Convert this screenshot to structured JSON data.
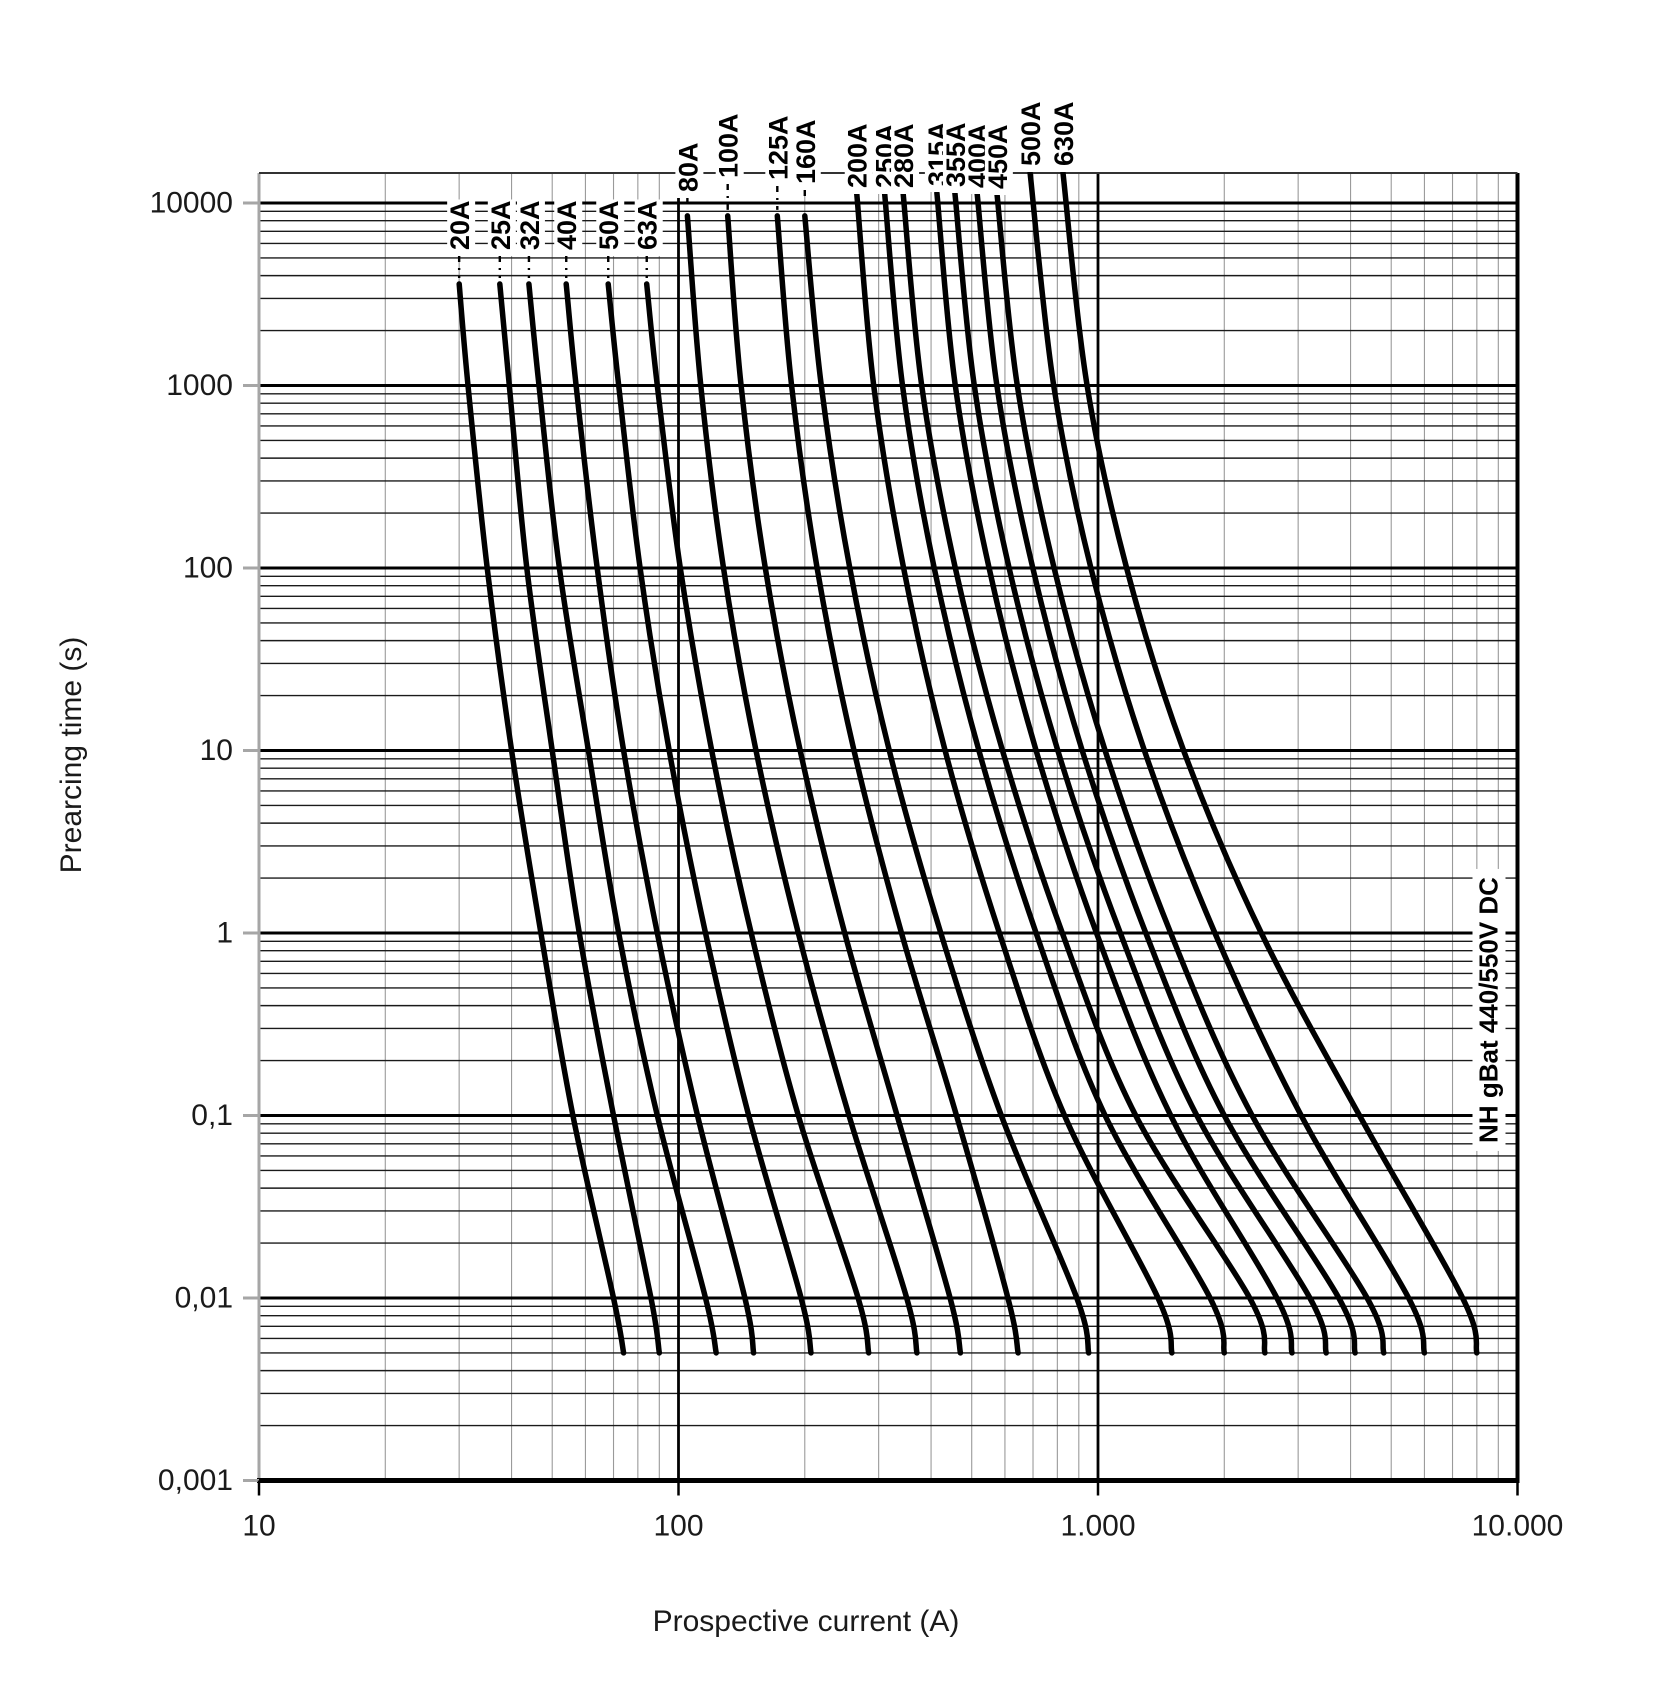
{
  "figure": {
    "x_axis_title": "Prospective current (A)",
    "y_axis_title": "Prearcing time (s)",
    "annotation": "NH gBat 440/550V DC"
  },
  "colors": {
    "curve": "#000000",
    "grid_minor_horizontal": "#1a1a1a",
    "grid_minor_vertical": "#9a9a9a",
    "grid_major": "#000000",
    "spine_left": "#a6a6a6",
    "spine_right": "#000000",
    "spine_top": "#333333",
    "spine_bottom": "#000000",
    "y_tick": "#a6a6a6",
    "x_tick": "#000000",
    "label_text": "#000000",
    "label_background": "#ffffff"
  },
  "chart_data": {
    "type": "line",
    "scale": "log-log",
    "title": "",
    "annotation": "NH gBat 440/550V DC",
    "xlabel": "Prospective current (A)",
    "ylabel": "Prearcing time (s)",
    "x_axis": {
      "min": 10,
      "max": 10000,
      "tick_values": [
        10,
        100,
        1000,
        10000
      ],
      "tick_labels": [
        "10",
        "100",
        "1.000",
        "10.000"
      ]
    },
    "y_axis": {
      "min": 0.001,
      "max": 14600,
      "tick_values": [
        0.001,
        0.01,
        0.1,
        1,
        10,
        100,
        1000,
        10000
      ],
      "tick_labels": [
        "0,001",
        "0,01",
        "0,1",
        "1",
        "10",
        "100",
        "1000",
        "10000"
      ]
    },
    "grid": {
      "major": true,
      "minor": true
    },
    "curve_end_time_s": 0.005,
    "series": [
      {
        "label": "20A",
        "rating_A": 20,
        "points_t_I": [
          [
            3600,
            30
          ],
          [
            1000,
            31.5
          ],
          [
            100,
            35
          ],
          [
            10,
            40
          ],
          [
            1,
            47
          ],
          [
            0.1,
            56
          ],
          [
            0.01,
            70
          ],
          [
            0.005,
            74
          ]
        ]
      },
      {
        "label": "25A",
        "rating_A": 25,
        "points_t_I": [
          [
            3600,
            37.5
          ],
          [
            1000,
            39.5
          ],
          [
            100,
            43.5
          ],
          [
            10,
            50
          ],
          [
            1,
            58
          ],
          [
            0.1,
            70
          ],
          [
            0.01,
            86
          ],
          [
            0.005,
            90
          ]
        ]
      },
      {
        "label": "32A",
        "rating_A": 32,
        "points_t_I": [
          [
            3600,
            44
          ],
          [
            1000,
            46.5
          ],
          [
            100,
            52
          ],
          [
            10,
            61
          ],
          [
            1,
            72
          ],
          [
            0.1,
            89
          ],
          [
            0.01,
            116
          ],
          [
            0.005,
            123
          ]
        ]
      },
      {
        "label": "40A",
        "rating_A": 40,
        "points_t_I": [
          [
            3600,
            54
          ],
          [
            1000,
            57
          ],
          [
            100,
            64
          ],
          [
            10,
            74
          ],
          [
            1,
            89
          ],
          [
            0.1,
            111
          ],
          [
            0.01,
            144
          ],
          [
            0.005,
            151
          ]
        ]
      },
      {
        "label": "50A",
        "rating_A": 50,
        "points_t_I": [
          [
            3600,
            68
          ],
          [
            1000,
            72
          ],
          [
            100,
            81
          ],
          [
            10,
            95
          ],
          [
            1,
            116
          ],
          [
            0.1,
            147
          ],
          [
            0.01,
            196
          ],
          [
            0.005,
            207
          ]
        ]
      },
      {
        "label": "63A",
        "rating_A": 63,
        "points_t_I": [
          [
            3600,
            84
          ],
          [
            1000,
            89
          ],
          [
            100,
            101
          ],
          [
            10,
            120
          ],
          [
            1,
            149
          ],
          [
            0.1,
            193
          ],
          [
            0.01,
            268
          ],
          [
            0.005,
            284
          ]
        ]
      },
      {
        "label": "80A",
        "rating_A": 80,
        "points_t_I": [
          [
            8500,
            105
          ],
          [
            1000,
            113
          ],
          [
            100,
            128
          ],
          [
            10,
            153
          ],
          [
            1,
            193
          ],
          [
            0.1,
            255
          ],
          [
            0.01,
            350
          ],
          [
            0.005,
            370
          ]
        ]
      },
      {
        "label": "100A",
        "rating_A": 100,
        "points_t_I": [
          [
            8500,
            131
          ],
          [
            1000,
            141
          ],
          [
            100,
            161
          ],
          [
            10,
            195
          ],
          [
            1,
            249
          ],
          [
            0.1,
            332
          ],
          [
            0.01,
            444
          ],
          [
            0.005,
            470
          ]
        ]
      },
      {
        "label": "125A",
        "rating_A": 125,
        "points_t_I": [
          [
            8500,
            172
          ],
          [
            1000,
            186
          ],
          [
            100,
            214
          ],
          [
            10,
            262
          ],
          [
            1,
            340
          ],
          [
            0.1,
            460
          ],
          [
            0.01,
            610
          ],
          [
            0.005,
            645
          ]
        ]
      },
      {
        "label": "160A",
        "rating_A": 160,
        "points_t_I": [
          [
            8500,
            200
          ],
          [
            1000,
            219
          ],
          [
            100,
            256
          ],
          [
            10,
            318
          ],
          [
            1,
            422
          ],
          [
            0.1,
            588
          ],
          [
            0.01,
            890
          ],
          [
            0.005,
            950
          ]
        ]
      },
      {
        "label": "200A",
        "rating_A": 200,
        "points_t_I": [
          [
            11350,
            266
          ],
          [
            1000,
            292
          ],
          [
            100,
            344
          ],
          [
            10,
            432
          ],
          [
            1,
            582
          ],
          [
            0.1,
            832
          ],
          [
            0.01,
            1390
          ],
          [
            0.005,
            1500
          ]
        ]
      },
      {
        "label": "250A",
        "rating_A": 250,
        "points_t_I": [
          [
            11350,
            310
          ],
          [
            1000,
            342
          ],
          [
            100,
            407
          ],
          [
            10,
            520
          ],
          [
            1,
            712
          ],
          [
            0.1,
            1040
          ],
          [
            0.01,
            1850
          ],
          [
            0.005,
            2000
          ]
        ]
      },
      {
        "label": "280A",
        "rating_A": 280,
        "points_t_I": [
          [
            11350,
            343
          ],
          [
            1000,
            380
          ],
          [
            100,
            457
          ],
          [
            10,
            592
          ],
          [
            1,
            822
          ],
          [
            0.1,
            1230
          ],
          [
            0.01,
            2300
          ],
          [
            0.005,
            2500
          ]
        ]
      },
      {
        "label": "315A",
        "rating_A": 315,
        "points_t_I": [
          [
            11350,
            413
          ],
          [
            1000,
            457
          ],
          [
            100,
            550
          ],
          [
            10,
            712
          ],
          [
            1,
            992
          ],
          [
            0.1,
            1490
          ],
          [
            0.01,
            2670
          ],
          [
            0.005,
            2900
          ]
        ]
      },
      {
        "label": "355A",
        "rating_A": 355,
        "points_t_I": [
          [
            11350,
            456
          ],
          [
            1000,
            507
          ],
          [
            100,
            614
          ],
          [
            10,
            802
          ],
          [
            1,
            1130
          ],
          [
            0.1,
            1720
          ],
          [
            0.01,
            3200
          ],
          [
            0.005,
            3500
          ]
        ]
      },
      {
        "label": "400A",
        "rating_A": 400,
        "points_t_I": [
          [
            11350,
            515
          ],
          [
            1000,
            574
          ],
          [
            100,
            699
          ],
          [
            10,
            917
          ],
          [
            1,
            1300
          ],
          [
            0.1,
            2000
          ],
          [
            0.01,
            3750
          ],
          [
            0.005,
            4100
          ]
        ]
      },
      {
        "label": "450A",
        "rating_A": 450,
        "points_t_I": [
          [
            11350,
            574
          ],
          [
            1000,
            642
          ],
          [
            100,
            786
          ],
          [
            10,
            1040
          ],
          [
            1,
            1490
          ],
          [
            0.1,
            2330
          ],
          [
            0.01,
            4380
          ],
          [
            0.005,
            4800
          ]
        ]
      },
      {
        "label": "500A",
        "rating_A": 500,
        "points_t_I": [
          [
            14600,
            689
          ],
          [
            1000,
            784
          ],
          [
            100,
            962
          ],
          [
            10,
            1290
          ],
          [
            1,
            1900
          ],
          [
            0.1,
            3050
          ],
          [
            0.01,
            5500
          ],
          [
            0.005,
            6000
          ]
        ]
      },
      {
        "label": "630A",
        "rating_A": 630,
        "points_t_I": [
          [
            14600,
            825
          ],
          [
            1000,
            942
          ],
          [
            100,
            1170
          ],
          [
            10,
            1600
          ],
          [
            1,
            2450
          ],
          [
            0.1,
            4200
          ],
          [
            0.01,
            7400
          ],
          [
            0.005,
            8000
          ]
        ]
      }
    ]
  }
}
